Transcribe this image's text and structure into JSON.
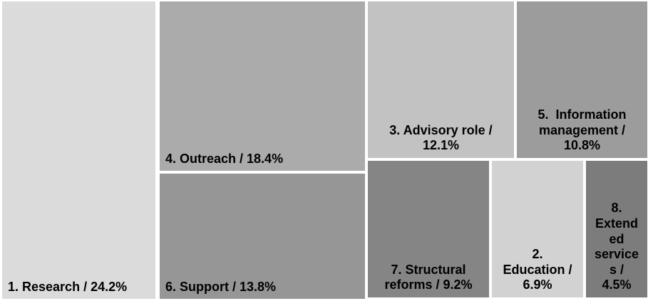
{
  "chart_data": {
    "type": "treemap",
    "title": "",
    "unit": "%",
    "value_total": 99.9,
    "label_format": "rank. name / value%",
    "text_color": "#000000",
    "background_color": "#ffffff",
    "items": [
      {
        "rank": 1,
        "name": "Research",
        "value": 24.2,
        "label": "1. Research / 24.2%",
        "lines": [
          "1. Research / 24.2%"
        ],
        "color": "#dbdbdb"
      },
      {
        "rank": 2,
        "name": "Education",
        "value": 6.9,
        "label": "2. Education / 6.9%",
        "lines": [
          "2.",
          "Education /",
          "6.9%"
        ],
        "color": "#d2d2d2"
      },
      {
        "rank": 3,
        "name": "Advisory role",
        "value": 12.1,
        "label": "3. Advisory role / 12.1%",
        "lines": [
          "3. Advisory role /",
          "12.1%"
        ],
        "color": "#c2c2c2"
      },
      {
        "rank": 4,
        "name": "Outreach",
        "value": 18.4,
        "label": "4. Outreach / 18.4%",
        "lines": [
          "4. Outreach / 18.4%"
        ],
        "color": "#ababab"
      },
      {
        "rank": 5,
        "name": "Information management",
        "value": 10.8,
        "label": "5.  Information management / 10.8%",
        "lines": [
          "5.  Information",
          "management /",
          "10.8%"
        ],
        "color": "#9c9c9c"
      },
      {
        "rank": 6,
        "name": "Support",
        "value": 13.8,
        "label": "6. Support / 13.8%",
        "lines": [
          "6. Support / 13.8%"
        ],
        "color": "#969696"
      },
      {
        "rank": 7,
        "name": "Structural reforms",
        "value": 9.2,
        "label": "7. Structural reforms / 9.2%",
        "lines": [
          "7. Structural",
          "reforms / 9.2%"
        ],
        "color": "#858585"
      },
      {
        "rank": 8,
        "name": "Extended services",
        "value": 4.5,
        "label": "8. Extended services / 4.5%",
        "lines": [
          "8.",
          "Extend",
          "ed",
          "service",
          "s /",
          "4.5%"
        ],
        "color": "#7c7c7c"
      }
    ]
  }
}
